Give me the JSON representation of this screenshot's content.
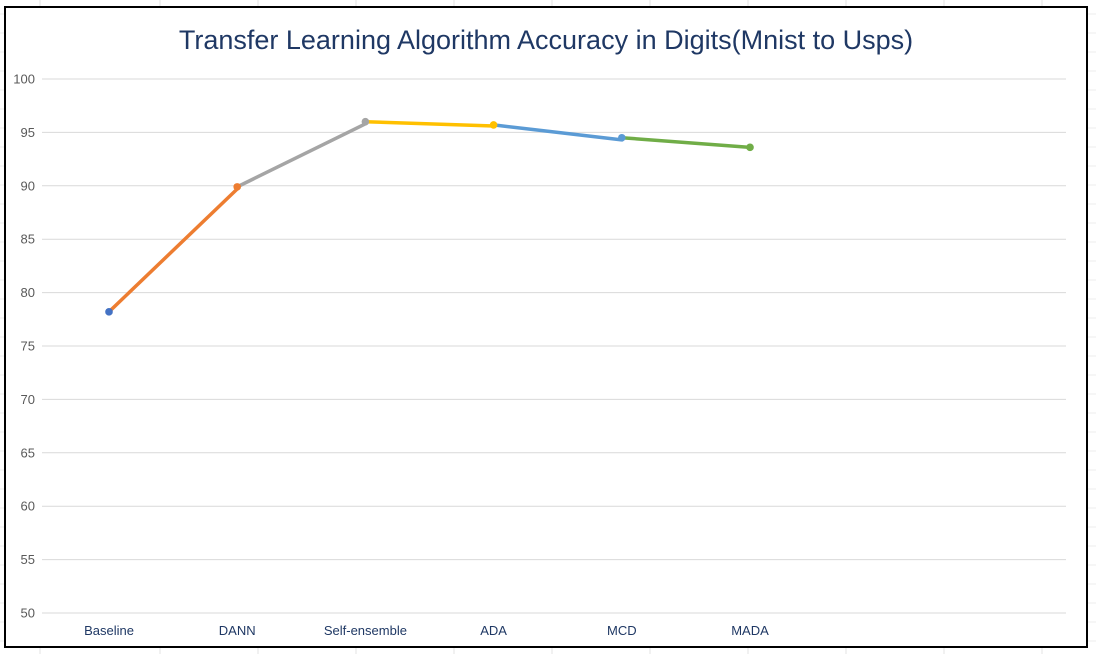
{
  "chart_data": {
    "type": "line",
    "title": "Transfer Learning Algorithm Accuracy in Digits(Mnist to Usps)",
    "xlabel": "",
    "ylabel": "",
    "categories": [
      "Baseline",
      "DANN",
      "Self-ensemble",
      "ADA",
      "MCD",
      "MADA"
    ],
    "values": [
      78.2,
      89.9,
      96.0,
      95.7,
      94.5,
      93.6
    ],
    "segment_end_values": [
      78.2,
      89.7,
      95.8,
      95.6,
      94.3,
      93.6
    ],
    "ylim": [
      50,
      100
    ],
    "yticks": [
      50,
      55,
      60,
      65,
      70,
      75,
      80,
      85,
      90,
      95,
      100
    ],
    "grid": true,
    "legend": "none",
    "point_colors": [
      "#4472c4",
      "#ed7d31",
      "#a5a5a5",
      "#ffc000",
      "#5b9bd5",
      "#70ad47"
    ],
    "segment_colors": [
      "#ed7d31",
      "#a5a5a5",
      "#ffc000",
      "#5b9bd5",
      "#70ad47"
    ],
    "colors": {
      "title": "#1f3864",
      "gridline": "#d9d9d9",
      "tick_label": "#595959",
      "category_label": "#1f3864",
      "frame": "#000000"
    }
  }
}
